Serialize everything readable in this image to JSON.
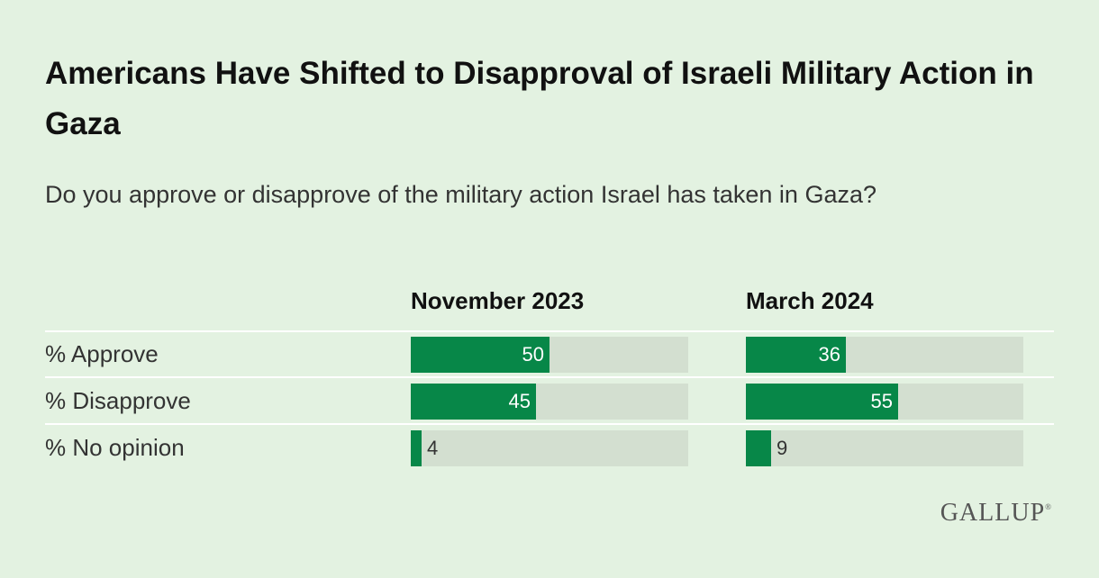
{
  "chart_data": {
    "type": "bar",
    "title": "Americans Have Shifted to Disapproval of Israeli Military Action in Gaza",
    "subtitle": "Do you approve or disapprove of the military action Israel has taken in Gaza?",
    "categories": [
      "% Approve",
      "% Disapprove",
      "% No opinion"
    ],
    "series": [
      {
        "name": "November 2023",
        "values": [
          50,
          45,
          4
        ]
      },
      {
        "name": "March 2024",
        "values": [
          36,
          55,
          9
        ]
      }
    ],
    "xlim": [
      0,
      100
    ]
  },
  "colors": {
    "background": "#e3f2e1",
    "bar": "#078748",
    "track": "#d3dfd0"
  },
  "brand": {
    "logo": "GALLUP",
    "registered_mark": "®"
  }
}
